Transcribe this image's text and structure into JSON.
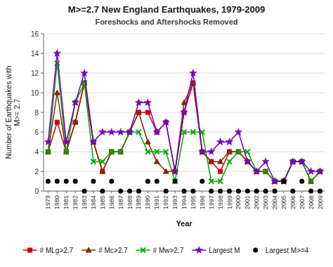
{
  "chart_data": {
    "type": "line",
    "title": "M>=2.7 New England Earthquakes, 1979-2009",
    "subtitle": "Foreshocks and Aftershocks Removed",
    "x_label": "Year",
    "y_label": "Number of Earthquakes with\nM>= 2.7",
    "categories": [
      "1979",
      "1980",
      "1981",
      "1982",
      "1983",
      "1984",
      "1985",
      "1986",
      "1987",
      "1988",
      "1989",
      "1990",
      "1991",
      "1992",
      "1993",
      "1994",
      "1995",
      "1996",
      "1997",
      "1998",
      "1999",
      "2000",
      "2001",
      "2002",
      "2003",
      "2004",
      "2005",
      "2006",
      "2007",
      "2008",
      "2009"
    ],
    "series": [
      {
        "name": "# MLg>2.7",
        "color": "#cc0000",
        "marker": "square",
        "line_style": "solid",
        "values": [
          4,
          7,
          4,
          7,
          11,
          5,
          2,
          4,
          4,
          6,
          8,
          8,
          6,
          7,
          2,
          8,
          11,
          4,
          3,
          2,
          4,
          4,
          3,
          2,
          2,
          1,
          1,
          3,
          3,
          1,
          2
        ]
      },
      {
        "name": "# Mc>2.7",
        "color": "#8b2500",
        "marker": "triangle",
        "line_style": "solid",
        "values": [
          4,
          10,
          4,
          7,
          11,
          5,
          2,
          4,
          4,
          6,
          8,
          5,
          3,
          2,
          2,
          9,
          11,
          4,
          3,
          3,
          4,
          4,
          3,
          2,
          2,
          1,
          1,
          3,
          3,
          1,
          2
        ]
      },
      {
        "name": "# Mw>2.7",
        "color": "#00aa00",
        "marker": "x",
        "line_style": "solid",
        "values": [
          4,
          13,
          4,
          9,
          11,
          3,
          3,
          4,
          4,
          6,
          6,
          4,
          4,
          4,
          1,
          6,
          6,
          6,
          1,
          1,
          3,
          4,
          4,
          2,
          2,
          1,
          1,
          3,
          3,
          1,
          2
        ]
      },
      {
        "name": "Largest M",
        "color": "#7700bb",
        "marker": "star",
        "line_style": "solid",
        "values": [
          5,
          14,
          5,
          9,
          12,
          5,
          6,
          6,
          6,
          6,
          9,
          9,
          6,
          7,
          2,
          8,
          12,
          4,
          4,
          5,
          5,
          6,
          3,
          2,
          3,
          1,
          1,
          3,
          3,
          2,
          2
        ]
      },
      {
        "name": "Largest M>=4",
        "color": "#000000",
        "marker": "circle",
        "line_style": "none",
        "type": "scatter",
        "values": [
          1,
          1,
          1,
          1,
          0,
          1,
          0,
          1,
          0,
          0,
          0,
          1,
          1,
          0,
          1,
          0,
          0,
          1,
          0,
          0,
          0,
          0,
          0,
          0,
          0,
          0,
          1,
          0,
          1,
          0,
          0
        ]
      }
    ],
    "ylim": [
      0,
      16
    ],
    "yticks": [
      0,
      2,
      4,
      6,
      8,
      10,
      12,
      14,
      16
    ],
    "grid": true,
    "legend": "bottom"
  }
}
